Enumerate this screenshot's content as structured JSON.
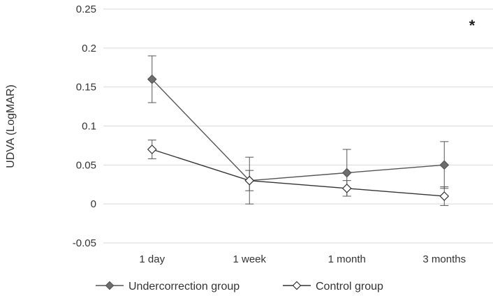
{
  "chart_data": {
    "type": "line",
    "title": "",
    "xlabel": "",
    "ylabel": "UDVA (LogMAR)",
    "categories": [
      "1 day",
      "1 week",
      "1 month",
      "3 months"
    ],
    "ylim": [
      -0.05,
      0.25
    ],
    "yticks": [
      -0.05,
      0,
      0.05,
      0.1,
      0.15,
      0.2,
      0.25
    ],
    "ytick_labels": [
      "-0.05",
      "0",
      "0.05",
      "0.1",
      "0.15",
      "0.2",
      "0.25"
    ],
    "grid": true,
    "legend_position": "bottom",
    "annotation": "*",
    "series": [
      {
        "name": "Undercorrection group",
        "marker": "diamond-filled",
        "color": "#555555",
        "fill": "#6d6d6d",
        "values": [
          0.16,
          0.03,
          0.04,
          0.05
        ],
        "error": [
          0.03,
          0.03,
          0.03,
          0.03
        ]
      },
      {
        "name": "Control group",
        "marker": "diamond-open",
        "color": "#333333",
        "fill": "#ffffff",
        "values": [
          0.07,
          0.03,
          0.02,
          0.01
        ],
        "error": [
          0.012,
          0.013,
          0.01,
          0.012
        ]
      }
    ]
  }
}
